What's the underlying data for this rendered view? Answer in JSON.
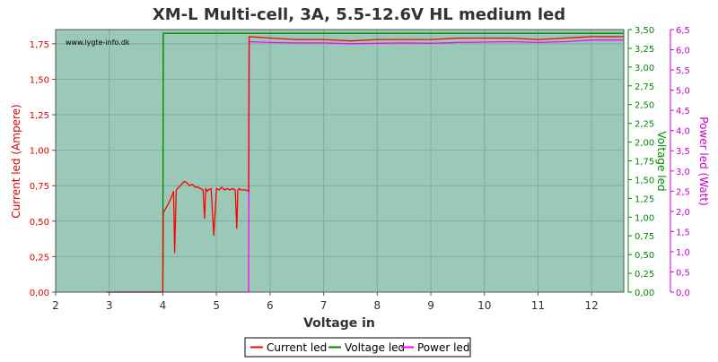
{
  "chart_data": {
    "type": "line",
    "title": "XM-L Multi-cell, 3A, 5.5-12.6V HL medium led",
    "watermark": "www.lygte-info.dk",
    "xlabel": "Voltage in",
    "xlim": [
      2,
      12.6
    ],
    "x_ticks": [
      "2",
      "3",
      "4",
      "5",
      "6",
      "7",
      "8",
      "9",
      "10",
      "11",
      "12"
    ],
    "grid": true,
    "legend_position": "bottom-center",
    "axes": {
      "current": {
        "label": "Current led (Ampere)",
        "color": "#dd0000",
        "ylim": [
          0,
          1.85
        ],
        "ticks": [
          "0,00",
          "0,25",
          "0,50",
          "0,75",
          "1,00",
          "1,25",
          "1,50",
          "1,75"
        ]
      },
      "voltage": {
        "label": "Voltage led",
        "color": "#008800",
        "ylim": [
          0,
          3.5
        ],
        "ticks": [
          "0,00",
          "0,25",
          "0,50",
          "0,75",
          "1,00",
          "1,25",
          "1,50",
          "1,75",
          "2,00",
          "2,25",
          "2,50",
          "2,75",
          "3,00",
          "3,25",
          "3,50"
        ]
      },
      "power": {
        "label": "Power led (Watt)",
        "color": "#cc00cc",
        "ylim": [
          0,
          6.5
        ],
        "ticks": [
          "0,0",
          "0,5",
          "1,0",
          "1,5",
          "2,0",
          "2,5",
          "3,0",
          "3,5",
          "4,0",
          "4,5",
          "5,0",
          "5,5",
          "6,0",
          "6,5"
        ]
      }
    },
    "series": [
      {
        "name": "Current led",
        "axis": "current",
        "color": "#ff0000",
        "x": [
          2.95,
          3.5,
          4.0,
          4.01,
          4.1,
          4.15,
          4.2,
          4.22,
          4.25,
          4.3,
          4.35,
          4.4,
          4.45,
          4.5,
          4.55,
          4.6,
          4.65,
          4.7,
          4.75,
          4.78,
          4.8,
          4.83,
          4.85,
          4.9,
          4.95,
          5.0,
          5.05,
          5.1,
          5.15,
          5.2,
          5.25,
          5.3,
          5.35,
          5.38,
          5.4,
          5.43,
          5.45,
          5.5,
          5.55,
          5.6,
          5.61,
          6.0,
          6.5,
          7.0,
          7.5,
          8.0,
          8.5,
          9.0,
          9.5,
          10.0,
          10.5,
          11.0,
          11.5,
          12.0,
          12.3,
          12.6
        ],
        "y": [
          0.0,
          0.0,
          0.0,
          0.56,
          0.62,
          0.66,
          0.71,
          0.28,
          0.72,
          0.74,
          0.76,
          0.78,
          0.77,
          0.75,
          0.76,
          0.74,
          0.74,
          0.73,
          0.72,
          0.52,
          0.73,
          0.71,
          0.72,
          0.73,
          0.4,
          0.73,
          0.72,
          0.74,
          0.72,
          0.73,
          0.72,
          0.73,
          0.72,
          0.45,
          0.72,
          0.73,
          0.72,
          0.72,
          0.72,
          0.71,
          1.8,
          1.79,
          1.78,
          1.78,
          1.77,
          1.78,
          1.78,
          1.78,
          1.79,
          1.79,
          1.79,
          1.78,
          1.79,
          1.8,
          1.8,
          1.8
        ]
      },
      {
        "name": "Voltage led",
        "axis": "voltage",
        "color": "#008800",
        "x": [
          2.95,
          4.0,
          4.01,
          12.6
        ],
        "y": [
          0.0,
          0.0,
          3.45,
          3.45
        ]
      },
      {
        "name": "Power led",
        "axis": "power",
        "color": "#ff00ff",
        "x": [
          2.95,
          5.6,
          5.61,
          6.0,
          6.5,
          7.0,
          7.5,
          8.0,
          8.5,
          9.0,
          9.5,
          10.0,
          10.5,
          11.0,
          11.5,
          12.0,
          12.3,
          12.6
        ],
        "y": [
          0.0,
          0.0,
          6.2,
          6.18,
          6.17,
          6.17,
          6.15,
          6.16,
          6.17,
          6.16,
          6.18,
          6.19,
          6.2,
          6.18,
          6.2,
          6.24,
          6.24,
          6.24
        ]
      }
    ]
  }
}
